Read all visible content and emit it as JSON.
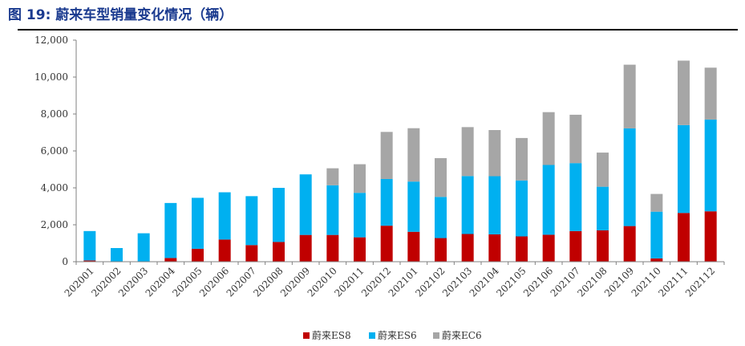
{
  "title": "图 19:  蔚来车型销量变化情况（辆）",
  "colors": {
    "es8": "#c00000",
    "es6": "#00b0f0",
    "ec6": "#a6a6a6"
  },
  "chart_data": {
    "type": "bar",
    "stacked": true,
    "categories": [
      "202001",
      "202002",
      "202003",
      "202004",
      "202005",
      "202006",
      "202007",
      "202008",
      "202009",
      "202010",
      "202011",
      "202012",
      "202101",
      "202102",
      "202103",
      "202104",
      "202105",
      "202106",
      "202107",
      "202108",
      "202109",
      "202110",
      "202111",
      "202112"
    ],
    "series": [
      {
        "name": "蔚来ES8",
        "values": [
          70,
          0,
          0,
          200,
          700,
          1200,
          900,
          1070,
          1450,
          1450,
          1320,
          1950,
          1620,
          1280,
          1500,
          1480,
          1370,
          1460,
          1660,
          1700,
          1930,
          180,
          2640,
          2730
        ]
      },
      {
        "name": "蔚来ES6",
        "values": [
          1590,
          740,
          1540,
          2980,
          2760,
          2560,
          2650,
          2930,
          3280,
          2690,
          2410,
          2530,
          2720,
          2230,
          3140,
          3150,
          3030,
          3780,
          3680,
          2360,
          5290,
          2530,
          4760,
          4970
        ]
      },
      {
        "name": "蔚来EC6",
        "values": [
          0,
          0,
          0,
          0,
          0,
          0,
          0,
          0,
          0,
          920,
          1550,
          2550,
          2890,
          2100,
          2650,
          2500,
          2300,
          2860,
          2620,
          1850,
          3450,
          960,
          3490,
          2810
        ]
      }
    ],
    "ylim": [
      0,
      12000
    ],
    "yticks": [
      "0",
      "2,000",
      "4,000",
      "6,000",
      "8,000",
      "10,000",
      "12,000"
    ],
    "legend": "bottom"
  }
}
